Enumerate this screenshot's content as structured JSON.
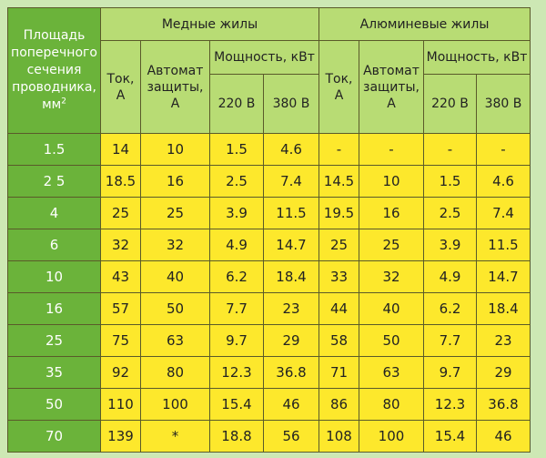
{
  "header": {
    "section_label_line1": "Площадь",
    "section_label_line2": "поперечного",
    "section_label_line3": "сечения",
    "section_label_line4": "проводника,",
    "section_label_unit": "мм",
    "section_label_unit_sup": "2",
    "copper_group": "Медные жилы",
    "aluminum_group": "Алюминевые жилы",
    "current_line1": "Ток,",
    "current_line2": "А",
    "breaker_line1": "Автомат",
    "breaker_line2": "защиты,",
    "breaker_line3": "А",
    "power": "Мощность, кВт",
    "v220": "220 В",
    "v380": "380 В"
  },
  "rows": [
    {
      "section": "1.5",
      "cu_current": "14",
      "cu_breaker": "10",
      "cu_p220": "1.5",
      "cu_p380": "4.6",
      "al_current": "-",
      "al_breaker": "-",
      "al_p220": "-",
      "al_p380": "-"
    },
    {
      "section": "2 5",
      "cu_current": "18.5",
      "cu_breaker": "16",
      "cu_p220": "2.5",
      "cu_p380": "7.4",
      "al_current": "14.5",
      "al_breaker": "10",
      "al_p220": "1.5",
      "al_p380": "4.6"
    },
    {
      "section": "4",
      "cu_current": "25",
      "cu_breaker": "25",
      "cu_p220": "3.9",
      "cu_p380": "11.5",
      "al_current": "19.5",
      "al_breaker": "16",
      "al_p220": "2.5",
      "al_p380": "7.4"
    },
    {
      "section": "6",
      "cu_current": "32",
      "cu_breaker": "32",
      "cu_p220": "4.9",
      "cu_p380": "14.7",
      "al_current": "25",
      "al_breaker": "25",
      "al_p220": "3.9",
      "al_p380": "11.5"
    },
    {
      "section": "10",
      "cu_current": "43",
      "cu_breaker": "40",
      "cu_p220": "6.2",
      "cu_p380": "18.4",
      "al_current": "33",
      "al_breaker": "32",
      "al_p220": "4.9",
      "al_p380": "14.7"
    },
    {
      "section": "16",
      "cu_current": "57",
      "cu_breaker": "50",
      "cu_p220": "7.7",
      "cu_p380": "23",
      "al_current": "44",
      "al_breaker": "40",
      "al_p220": "6.2",
      "al_p380": "18.4"
    },
    {
      "section": "25",
      "cu_current": "75",
      "cu_breaker": "63",
      "cu_p220": "9.7",
      "cu_p380": "29",
      "al_current": "58",
      "al_breaker": "50",
      "al_p220": "7.7",
      "al_p380": "23"
    },
    {
      "section": "35",
      "cu_current": "92",
      "cu_breaker": "80",
      "cu_p220": "12.3",
      "cu_p380": "36.8",
      "al_current": "71",
      "al_breaker": "63",
      "al_p220": "9.7",
      "al_p380": "29"
    },
    {
      "section": "50",
      "cu_current": "110",
      "cu_breaker": "100",
      "cu_p220": "15.4",
      "cu_p380": "46",
      "al_current": "86",
      "al_breaker": "80",
      "al_p220": "12.3",
      "al_p380": "36.8"
    },
    {
      "section": "70",
      "cu_current": "139",
      "cu_breaker": "*",
      "cu_p220": "18.8",
      "cu_p380": "56",
      "al_current": "108",
      "al_breaker": "100",
      "al_p220": "15.4",
      "al_p380": "46"
    }
  ],
  "colors": {
    "page_background": "#cde8b4",
    "header_background": "#b8dc74",
    "row_header_background": "#6bb33a",
    "cell_background": "#fde82c",
    "border": "#5a5a2a"
  }
}
